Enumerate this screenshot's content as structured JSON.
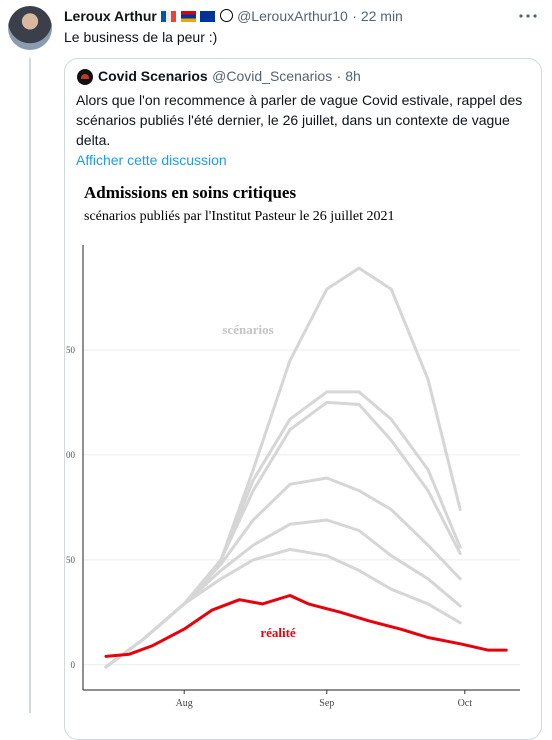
{
  "tweet": {
    "name": "Leroux Arthur",
    "handle": "@LerouxArthur10",
    "time": "· 22 min",
    "text": "Le business de la peur :)",
    "quoted": {
      "name": "Covid Scenarios",
      "handle": "@Covid_Scenarios",
      "time": "· 8h",
      "text": "Alors que l'on recommence à parler de vague Covid estivale, rappel des scénarios publiés l'été dernier, le 26 juillet, dans un contexte de vague delta.",
      "link": "Afficher cette discussion"
    }
  },
  "chart_data": {
    "type": "line",
    "title": "Admissions en soins critiques",
    "subtitle": "scénarios publiés par l'Institut Pasteur le 26 juillet 2021",
    "annotations": [
      {
        "text": "scénarios",
        "color": "#c4c4c4"
      },
      {
        "text": "réalité",
        "color": "#e8000b"
      }
    ],
    "xlim": [
      -22,
      73
    ],
    "xticks": [
      {
        "value": 0,
        "label": "Aug"
      },
      {
        "value": 31,
        "label": "Sep"
      },
      {
        "value": 61,
        "label": "Oct"
      }
    ],
    "ylim": [
      -12,
      200
    ],
    "yticks": [
      0,
      {
        "value": 50,
        "label": "50"
      },
      {
        "value": 100,
        "label": "00"
      },
      {
        "value": 150,
        "label": "50"
      }
    ],
    "grid": true,
    "series": [
      {
        "color": "#d6d6d6",
        "x": [
          -17,
          -9,
          0,
          8,
          15,
          23,
          31,
          38,
          45,
          53,
          60
        ],
        "values": [
          -1,
          12,
          29,
          50,
          93,
          145,
          179,
          189,
          179,
          136,
          74
        ]
      },
      {
        "color": "#d6d6d6",
        "x": [
          -17,
          -9,
          0,
          8,
          15,
          23,
          31,
          38,
          45,
          53,
          60
        ],
        "values": [
          -1,
          12,
          29,
          50,
          88,
          117,
          130,
          130,
          117,
          93,
          56
        ]
      },
      {
        "color": "#d6d6d6",
        "x": [
          -17,
          -9,
          0,
          8,
          15,
          23,
          31,
          38,
          45,
          53,
          60
        ],
        "values": [
          -1,
          12,
          29,
          50,
          83,
          112,
          125,
          124,
          107,
          83,
          53
        ]
      },
      {
        "color": "#d6d6d6",
        "x": [
          -17,
          -9,
          0,
          8,
          15,
          23,
          31,
          38,
          45,
          53,
          60
        ],
        "values": [
          -1,
          12,
          29,
          48,
          69,
          86,
          89,
          83,
          74,
          57,
          41
        ]
      },
      {
        "color": "#d6d6d6",
        "x": [
          -17,
          -9,
          0,
          8,
          15,
          23,
          31,
          38,
          45,
          53,
          60
        ],
        "values": [
          -1,
          12,
          29,
          45,
          57,
          67,
          69,
          64,
          52,
          41,
          28
        ]
      },
      {
        "color": "#d6d6d6",
        "x": [
          -17,
          -9,
          0,
          8,
          15,
          23,
          31,
          38,
          45,
          53,
          60
        ],
        "values": [
          -1,
          12,
          29,
          41,
          50,
          55,
          52,
          45,
          36,
          29,
          20
        ]
      },
      {
        "color": "#e8000b",
        "x": [
          -17,
          -12,
          -7,
          0,
          6,
          12,
          17,
          23,
          27,
          34,
          40,
          47,
          53,
          60,
          66,
          70
        ],
        "values": [
          4,
          5,
          9,
          17,
          26,
          31,
          29,
          33,
          29,
          25,
          21,
          17,
          13,
          10,
          7,
          7
        ]
      }
    ]
  }
}
